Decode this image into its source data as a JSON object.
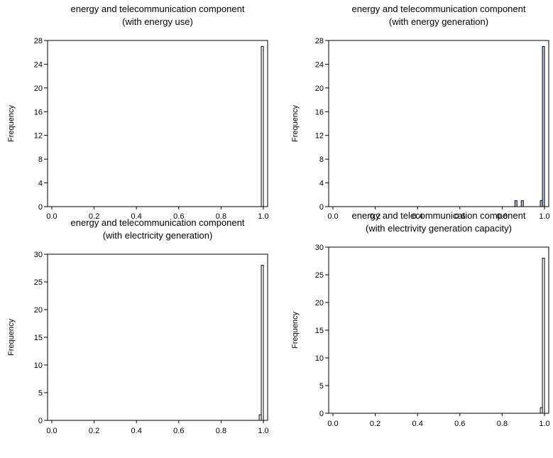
{
  "chart_data": [
    {
      "type": "bar",
      "title": "energy and telecommunication component",
      "subtitle": "(with energy use)",
      "xlabel": "",
      "ylabel": "Frequency",
      "xlim": [
        -0.02,
        1.02
      ],
      "ylim": [
        0,
        28
      ],
      "x_ticks": [
        "0.0",
        "0.2",
        "0.4",
        "0.6",
        "0.8",
        "1.0"
      ],
      "y_ticks": [
        "0",
        "4",
        "8",
        "12",
        "16",
        "20",
        "24",
        "28"
      ],
      "bin_width": 0.01,
      "bars": [
        {
          "x": 0.995,
          "value": 27
        }
      ],
      "bar_fill": "#ffffff"
    },
    {
      "type": "bar",
      "title": "energy and telecommunication component",
      "subtitle": "(with energy generation)",
      "xlabel": "",
      "ylabel": "Frequency",
      "xlim": [
        -0.02,
        1.02
      ],
      "ylim": [
        0,
        28
      ],
      "x_ticks": [
        "0.0",
        "0.2",
        "0.4",
        "0.6",
        "0.8",
        "1.0"
      ],
      "y_ticks": [
        "0",
        "4",
        "8",
        "12",
        "16",
        "20",
        "24",
        "28"
      ],
      "bin_width": 0.01,
      "bars": [
        {
          "x": 0.865,
          "value": 1
        },
        {
          "x": 0.895,
          "value": 1
        },
        {
          "x": 0.985,
          "value": 1
        },
        {
          "x": 0.995,
          "value": 27
        }
      ],
      "bar_fill": "#b8c8e8"
    },
    {
      "type": "bar",
      "title": "energy and telecommunication component",
      "subtitle": "(with electricity generation)",
      "xlabel": "",
      "ylabel": "Frequency",
      "xlim": [
        -0.02,
        1.02
      ],
      "ylim": [
        0,
        30
      ],
      "x_ticks": [
        "0.0",
        "0.2",
        "0.4",
        "0.6",
        "0.8",
        "1.0"
      ],
      "y_ticks": [
        "0",
        "5",
        "10",
        "15",
        "20",
        "25",
        "30"
      ],
      "bin_width": 0.01,
      "bars": [
        {
          "x": 0.985,
          "value": 1
        },
        {
          "x": 0.995,
          "value": 28
        }
      ],
      "bar_fill": "#ffffff"
    },
    {
      "type": "bar",
      "title": "energy and telecommunication component",
      "subtitle": "(with electrivity generation capacity)",
      "xlabel": "",
      "ylabel": "Frequency",
      "xlim": [
        -0.02,
        1.02
      ],
      "ylim": [
        0,
        30
      ],
      "x_ticks": [
        "0.0",
        "0.2",
        "0.4",
        "0.6",
        "0.8",
        "1.0"
      ],
      "y_ticks": [
        "0",
        "5",
        "10",
        "15",
        "20",
        "25",
        "30"
      ],
      "bin_width": 0.01,
      "bars": [
        {
          "x": 0.985,
          "value": 1
        },
        {
          "x": 0.995,
          "value": 28
        }
      ],
      "bar_fill": "#ffffff"
    }
  ]
}
